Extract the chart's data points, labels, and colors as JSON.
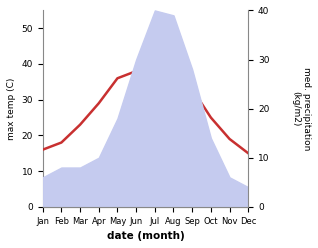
{
  "months": [
    "Jan",
    "Feb",
    "Mar",
    "Apr",
    "May",
    "Jun",
    "Jul",
    "Aug",
    "Sep",
    "Oct",
    "Nov",
    "Dec"
  ],
  "temperature": [
    16,
    18,
    23,
    29,
    36,
    38,
    40,
    40,
    33,
    25,
    19,
    15
  ],
  "precipitation": [
    6,
    8,
    8,
    10,
    18,
    30,
    40,
    39,
    28,
    14,
    6,
    4
  ],
  "temp_color": "#c83030",
  "precip_fill_color": "#c5cbef",
  "ylabel_left": "max temp (C)",
  "ylabel_right": "med. precipitation\n(kg/m2)",
  "xlabel": "date (month)",
  "ylim_left": [
    0,
    55
  ],
  "ylim_right": [
    0,
    40
  ],
  "bg_color": "#ffffff"
}
